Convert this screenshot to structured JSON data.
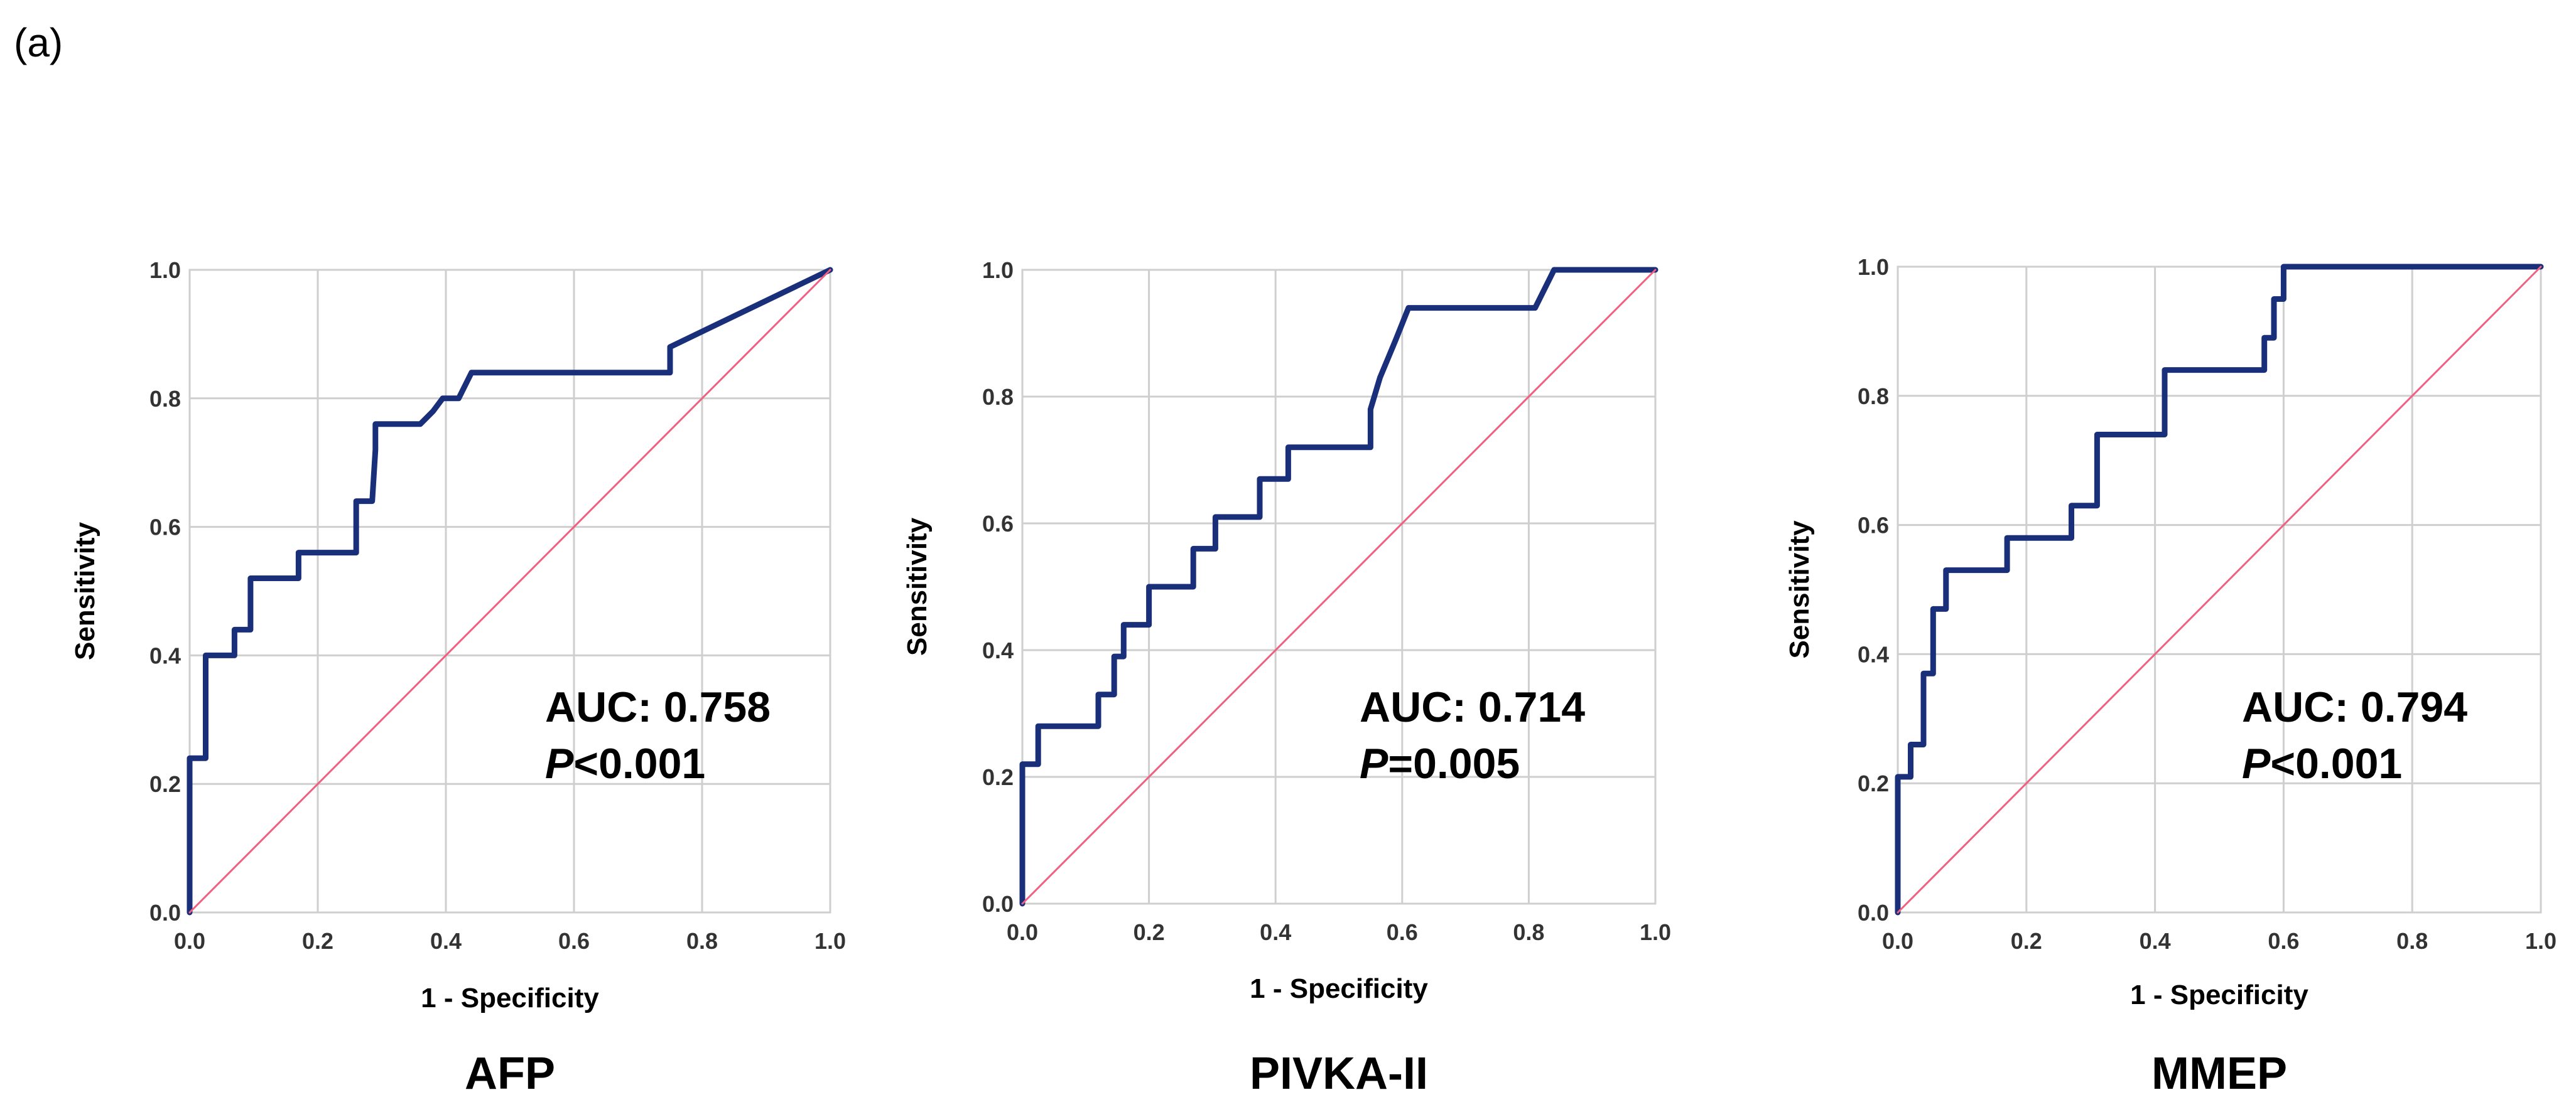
{
  "panel_label": "(a)",
  "colors": {
    "roc": "#1a2f7a",
    "reference": "#f06080",
    "grid": "#cfcfcf",
    "frame": "#cfcfcf"
  },
  "chart_data": [
    {
      "type": "line",
      "title": "AFP",
      "xlabel": "1 - Specificity",
      "ylabel": "Sensitivity",
      "xlim": [
        0,
        1
      ],
      "ylim": [
        0,
        1
      ],
      "xticks": [
        "0.0",
        "0.2",
        "0.4",
        "0.6",
        "0.8",
        "1.0"
      ],
      "yticks": [
        "0.0",
        "0.2",
        "0.4",
        "0.6",
        "0.8",
        "1.0"
      ],
      "grid": true,
      "auc_text": "AUC: 0.758",
      "p_label": "P",
      "p_value_text": "<0.001",
      "series": [
        {
          "name": "ROC",
          "x": [
            0,
            0,
            0.025,
            0.025,
            0.07,
            0.07,
            0.095,
            0.095,
            0.17,
            0.17,
            0.26,
            0.26,
            0.285,
            0.29,
            0.29,
            0.36,
            0.38,
            0.395,
            0.42,
            0.43,
            0.44,
            0.75,
            0.75,
            1.0
          ],
          "y": [
            0,
            0.24,
            0.24,
            0.4,
            0.4,
            0.44,
            0.44,
            0.52,
            0.52,
            0.56,
            0.56,
            0.64,
            0.64,
            0.72,
            0.76,
            0.76,
            0.78,
            0.8,
            0.8,
            0.82,
            0.84,
            0.84,
            0.88,
            1.0
          ]
        },
        {
          "name": "Reference",
          "x": [
            0,
            1
          ],
          "y": [
            0,
            1
          ]
        }
      ]
    },
    {
      "type": "line",
      "title": "PIVKA-II",
      "xlabel": "1 - Specificity",
      "ylabel": "Sensitivity",
      "xlim": [
        0,
        1
      ],
      "ylim": [
        0,
        1
      ],
      "xticks": [
        "0.0",
        "0.2",
        "0.4",
        "0.6",
        "0.8",
        "1.0"
      ],
      "yticks": [
        "0.0",
        "0.2",
        "0.4",
        "0.6",
        "0.8",
        "1.0"
      ],
      "grid": true,
      "auc_text": "AUC: 0.714",
      "p_label": "P",
      "p_value_text": "=0.005",
      "series": [
        {
          "name": "ROC",
          "x": [
            0,
            0,
            0.025,
            0.025,
            0.12,
            0.12,
            0.145,
            0.145,
            0.16,
            0.16,
            0.2,
            0.2,
            0.27,
            0.27,
            0.305,
            0.305,
            0.375,
            0.375,
            0.42,
            0.42,
            0.55,
            0.55,
            0.565,
            0.59,
            0.61,
            0.61,
            0.81,
            0.84,
            1.0
          ],
          "y": [
            0,
            0.22,
            0.22,
            0.28,
            0.28,
            0.33,
            0.33,
            0.39,
            0.39,
            0.44,
            0.44,
            0.5,
            0.5,
            0.56,
            0.56,
            0.61,
            0.61,
            0.67,
            0.67,
            0.72,
            0.72,
            0.78,
            0.83,
            0.89,
            0.94,
            0.94,
            0.94,
            1.0,
            1.0
          ]
        },
        {
          "name": "Reference",
          "x": [
            0,
            1
          ],
          "y": [
            0,
            1
          ]
        }
      ]
    },
    {
      "type": "line",
      "title": "MMEP",
      "xlabel": "1 - Specificity",
      "ylabel": "Sensitivity",
      "xlim": [
        0,
        1
      ],
      "ylim": [
        0,
        1
      ],
      "xticks": [
        "0.0",
        "0.2",
        "0.4",
        "0.6",
        "0.8",
        "1.0"
      ],
      "yticks": [
        "0.0",
        "0.2",
        "0.4",
        "0.6",
        "0.8",
        "1.0"
      ],
      "grid": true,
      "auc_text": "AUC: 0.794",
      "p_label": "P",
      "p_value_text": "<0.001",
      "series": [
        {
          "name": "ROC",
          "x": [
            0,
            0,
            0.02,
            0.02,
            0.04,
            0.04,
            0.055,
            0.055,
            0.075,
            0.075,
            0.17,
            0.17,
            0.27,
            0.27,
            0.31,
            0.31,
            0.415,
            0.415,
            0.57,
            0.57,
            0.585,
            0.585,
            0.6,
            0.6,
            1.0
          ],
          "y": [
            0,
            0.21,
            0.21,
            0.26,
            0.26,
            0.37,
            0.37,
            0.47,
            0.47,
            0.53,
            0.53,
            0.58,
            0.58,
            0.63,
            0.63,
            0.74,
            0.74,
            0.84,
            0.84,
            0.89,
            0.89,
            0.95,
            0.95,
            1.0,
            1.0
          ]
        },
        {
          "name": "Reference",
          "x": [
            0,
            1
          ],
          "y": [
            0,
            1
          ]
        }
      ]
    }
  ]
}
